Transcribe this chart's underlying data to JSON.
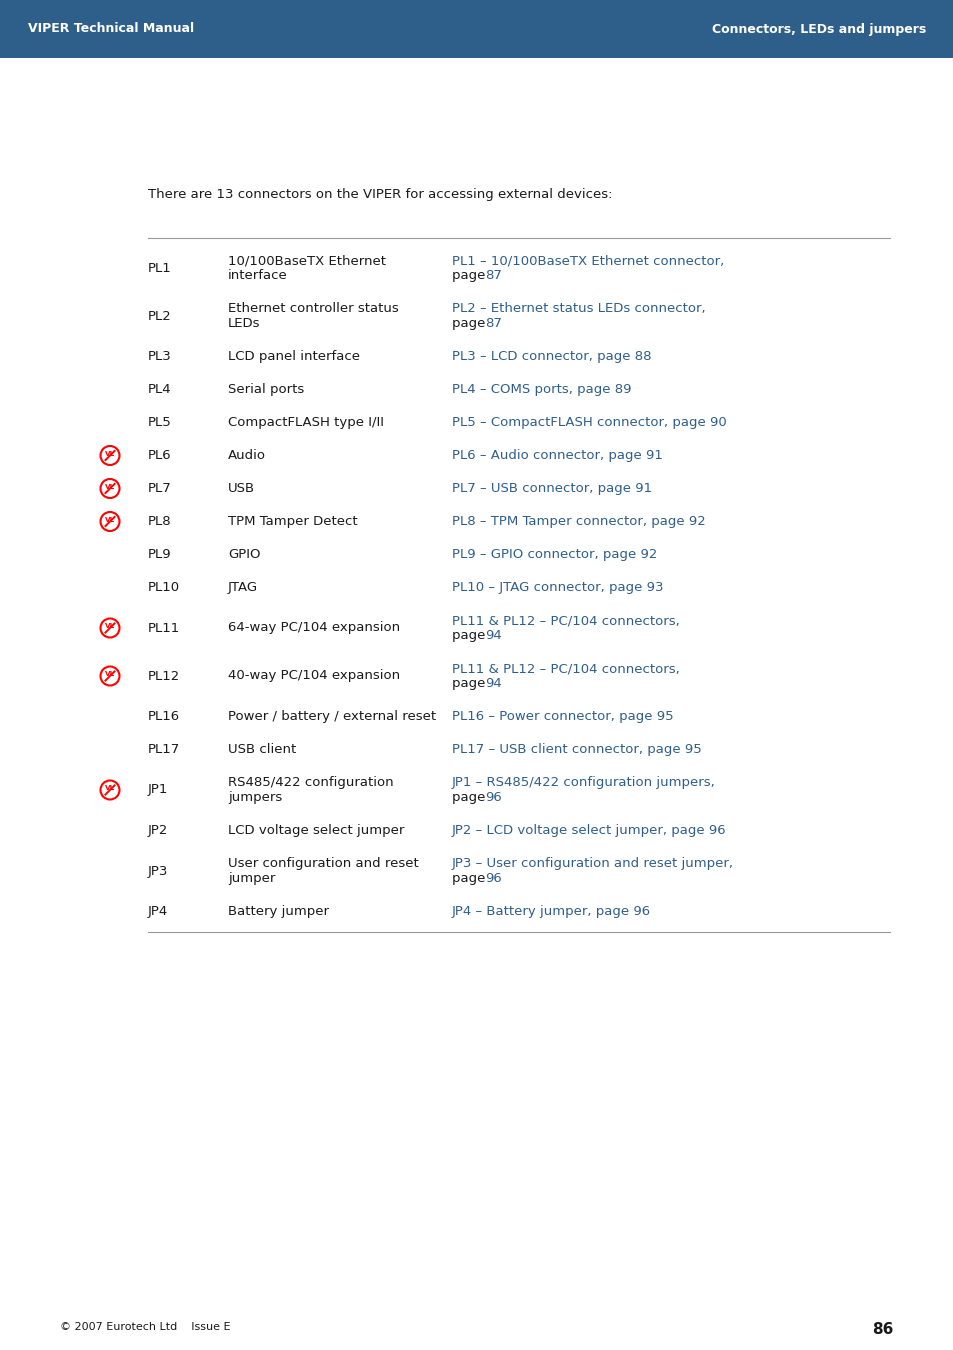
{
  "header_bg": "#2e5f8a",
  "header_text_color": "#ffffff",
  "header_left": "VIPER Technical Manual",
  "header_right": "Connectors, LEDs and jumpers",
  "body_bg": "#ffffff",
  "body_text_color": "#1a1a1a",
  "link_color": "#2e5f8a",
  "footer_text": "© 2007 Eurotech Ltd    Issue E",
  "footer_page": "86",
  "intro_text": "There are 13 connectors on the VIPER for accessing external devices:",
  "rows": [
    {
      "id": "PL1",
      "has_icon": false,
      "desc": [
        "10/100BaseTX Ethernet",
        "interface"
      ],
      "link1": "PL1 – 10/100BaseTX Ethernet connector,",
      "page_num": "87",
      "two_link_lines": true
    },
    {
      "id": "PL2",
      "has_icon": false,
      "desc": [
        "Ethernet controller status",
        "LEDs"
      ],
      "link1": "PL2 – Ethernet status LEDs connector,",
      "page_num": "87",
      "two_link_lines": true
    },
    {
      "id": "PL3",
      "has_icon": false,
      "desc": [
        "LCD panel interface"
      ],
      "link1": "PL3 – LCD connector,",
      "page_num": "88",
      "two_link_lines": false
    },
    {
      "id": "PL4",
      "has_icon": false,
      "desc": [
        "Serial ports"
      ],
      "link1": "PL4 – COMS ports,",
      "page_num": "89",
      "two_link_lines": false
    },
    {
      "id": "PL5",
      "has_icon": false,
      "desc": [
        "CompactFLASH type I/II"
      ],
      "link1": "PL5 – CompactFLASH connector,",
      "page_num": "90",
      "two_link_lines": false
    },
    {
      "id": "PL6",
      "has_icon": true,
      "desc": [
        "Audio"
      ],
      "link1": "PL6 – Audio connector,",
      "page_num": "91",
      "two_link_lines": false
    },
    {
      "id": "PL7",
      "has_icon": true,
      "desc": [
        "USB"
      ],
      "link1": "PL7 – USB connector,",
      "page_num": "91",
      "two_link_lines": false
    },
    {
      "id": "PL8",
      "has_icon": true,
      "desc": [
        "TPM Tamper Detect"
      ],
      "link1": "PL8 – TPM Tamper connector,",
      "page_num": "92",
      "two_link_lines": false
    },
    {
      "id": "PL9",
      "has_icon": false,
      "desc": [
        "GPIO"
      ],
      "link1": "PL9 – GPIO connector,",
      "page_num": "92",
      "two_link_lines": false
    },
    {
      "id": "PL10",
      "has_icon": false,
      "desc": [
        "JTAG"
      ],
      "link1": "PL10 – JTAG connector,",
      "page_num": "93",
      "two_link_lines": false
    },
    {
      "id": "PL11",
      "has_icon": true,
      "desc": [
        "64-way PC/104 expansion"
      ],
      "link1": "PL11 & PL12 – PC/104 connectors,",
      "page_num": "94",
      "two_link_lines": true
    },
    {
      "id": "PL12",
      "has_icon": true,
      "desc": [
        "40-way PC/104 expansion"
      ],
      "link1": "PL11 & PL12 – PC/104 connectors,",
      "page_num": "94",
      "two_link_lines": true
    },
    {
      "id": "PL16",
      "has_icon": false,
      "desc": [
        "Power / battery / external reset"
      ],
      "link1": "PL16 – Power connector,",
      "page_num": "95",
      "two_link_lines": false
    },
    {
      "id": "PL17",
      "has_icon": false,
      "desc": [
        "USB client"
      ],
      "link1": "PL17 – USB client connector,",
      "page_num": "95",
      "two_link_lines": false
    },
    {
      "id": "JP1",
      "has_icon": true,
      "desc": [
        "RS485/422 configuration",
        "jumpers"
      ],
      "link1": "JP1 – RS485/422 configuration jumpers,",
      "page_num": "96",
      "two_link_lines": true
    },
    {
      "id": "JP2",
      "has_icon": false,
      "desc": [
        "LCD voltage select jumper"
      ],
      "link1": "JP2 – LCD voltage select jumper,",
      "page_num": "96",
      "two_link_lines": false
    },
    {
      "id": "JP3",
      "has_icon": false,
      "desc": [
        "User configuration and reset",
        "jumper"
      ],
      "link1": "JP3 – User configuration and reset jumper,",
      "page_num": "96",
      "two_link_lines": true
    },
    {
      "id": "JP4",
      "has_icon": false,
      "desc": [
        "Battery jumper"
      ],
      "link1": "JP4 – Battery jumper,",
      "page_num": "96",
      "two_link_lines": false
    }
  ]
}
